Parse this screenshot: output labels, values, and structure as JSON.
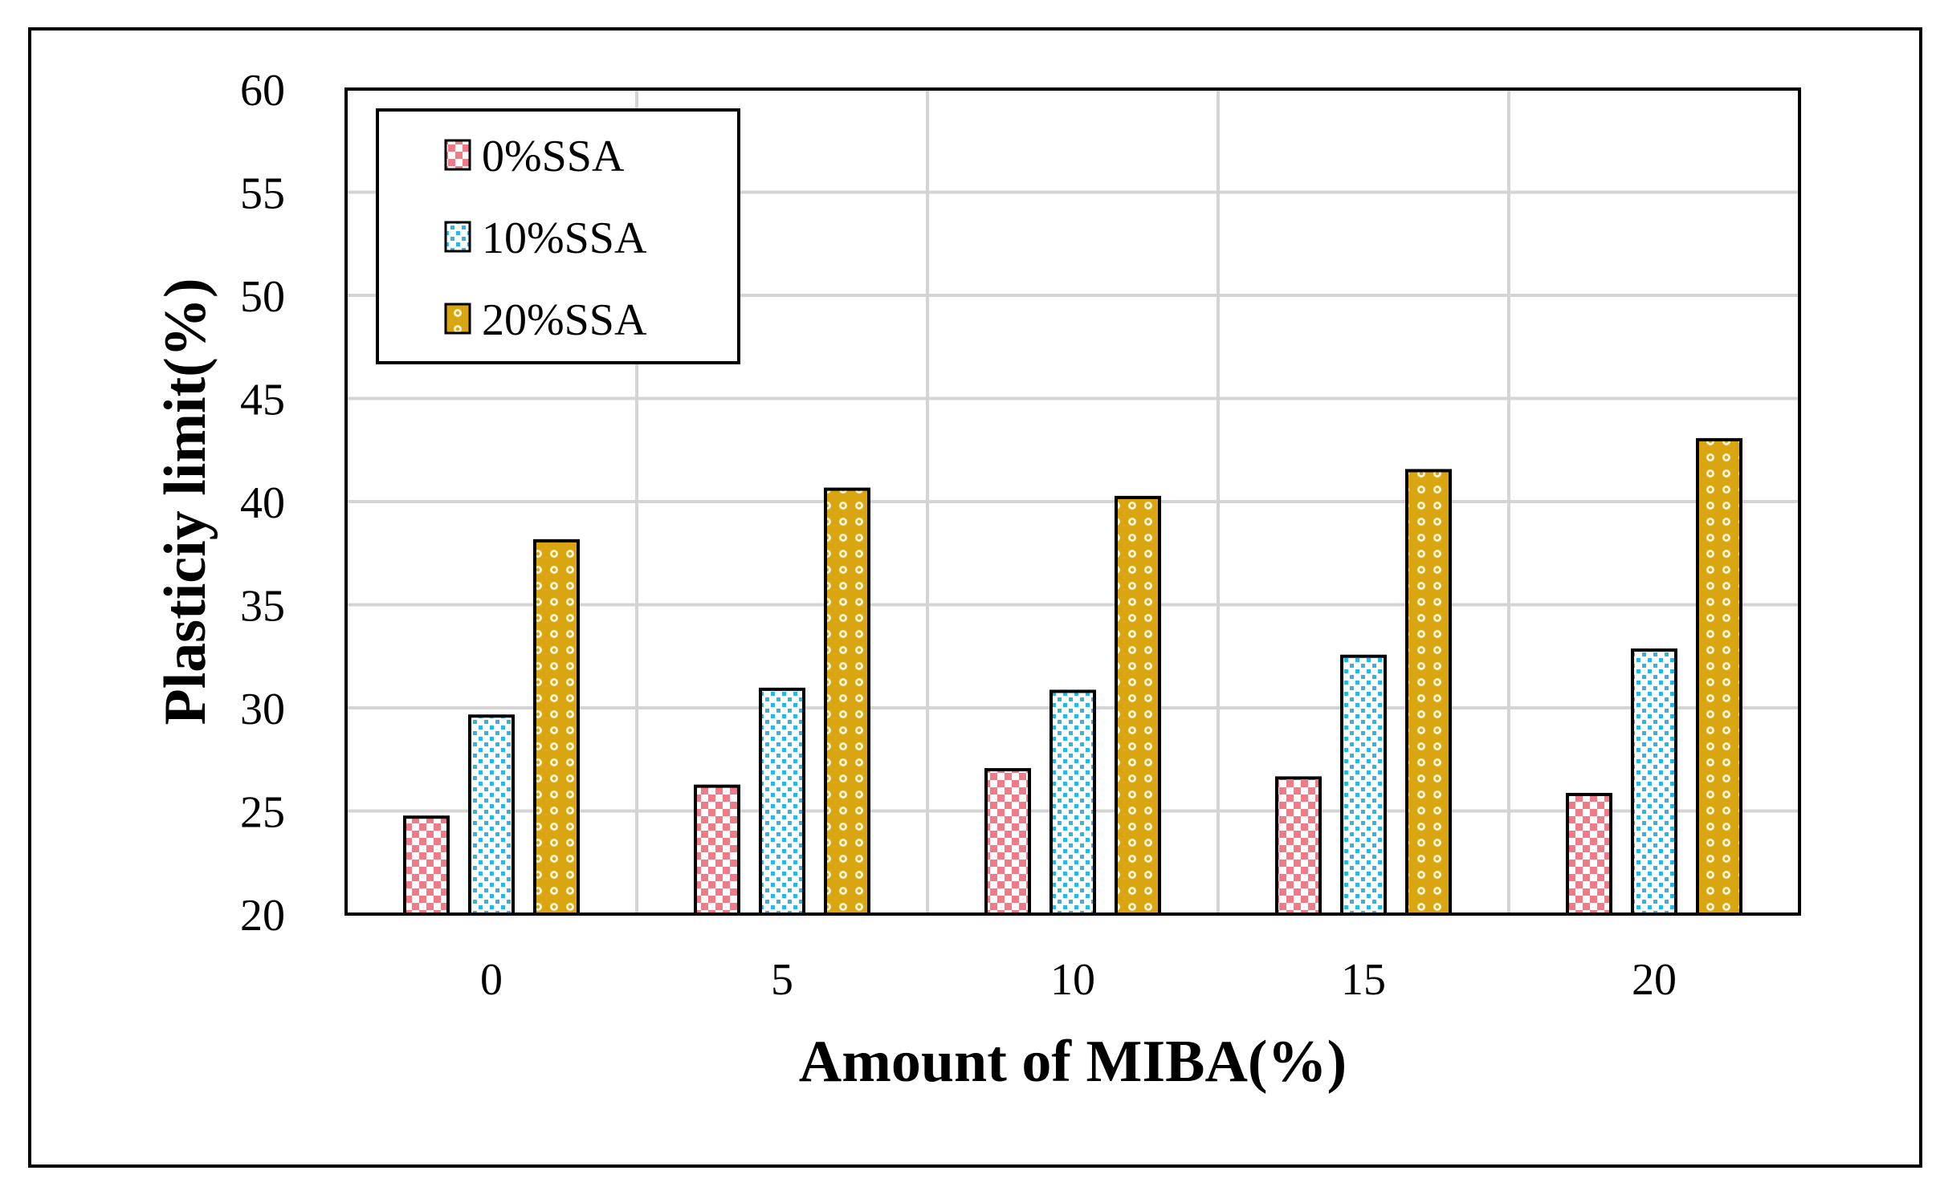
{
  "colors": {
    "series_0": "#f07a86",
    "series_1": "#2ab6ea",
    "series_2": "#d9a511",
    "grid": "#d4d4d4",
    "axis": "#000000",
    "frame": "#000000"
  },
  "chart_data": {
    "type": "bar",
    "title": "",
    "xlabel": "Amount of MIBA(%)",
    "ylabel": "Plasticiy limit(%)",
    "categories": [
      "0",
      "5",
      "10",
      "15",
      "20"
    ],
    "ylim": [
      20,
      60
    ],
    "yticks": [
      20,
      25,
      30,
      35,
      40,
      45,
      50,
      55,
      60
    ],
    "grid": true,
    "legend_position": "top-left",
    "series": [
      {
        "name": "0%SSA",
        "pattern": "checker",
        "values": [
          24.7,
          26.2,
          27.0,
          26.6,
          25.8
        ]
      },
      {
        "name": "10%SSA",
        "pattern": "dots",
        "values": [
          29.6,
          30.9,
          30.8,
          32.5,
          32.8
        ]
      },
      {
        "name": "20%SSA",
        "pattern": "circles",
        "values": [
          38.1,
          40.6,
          40.2,
          41.5,
          43.0
        ]
      }
    ]
  }
}
